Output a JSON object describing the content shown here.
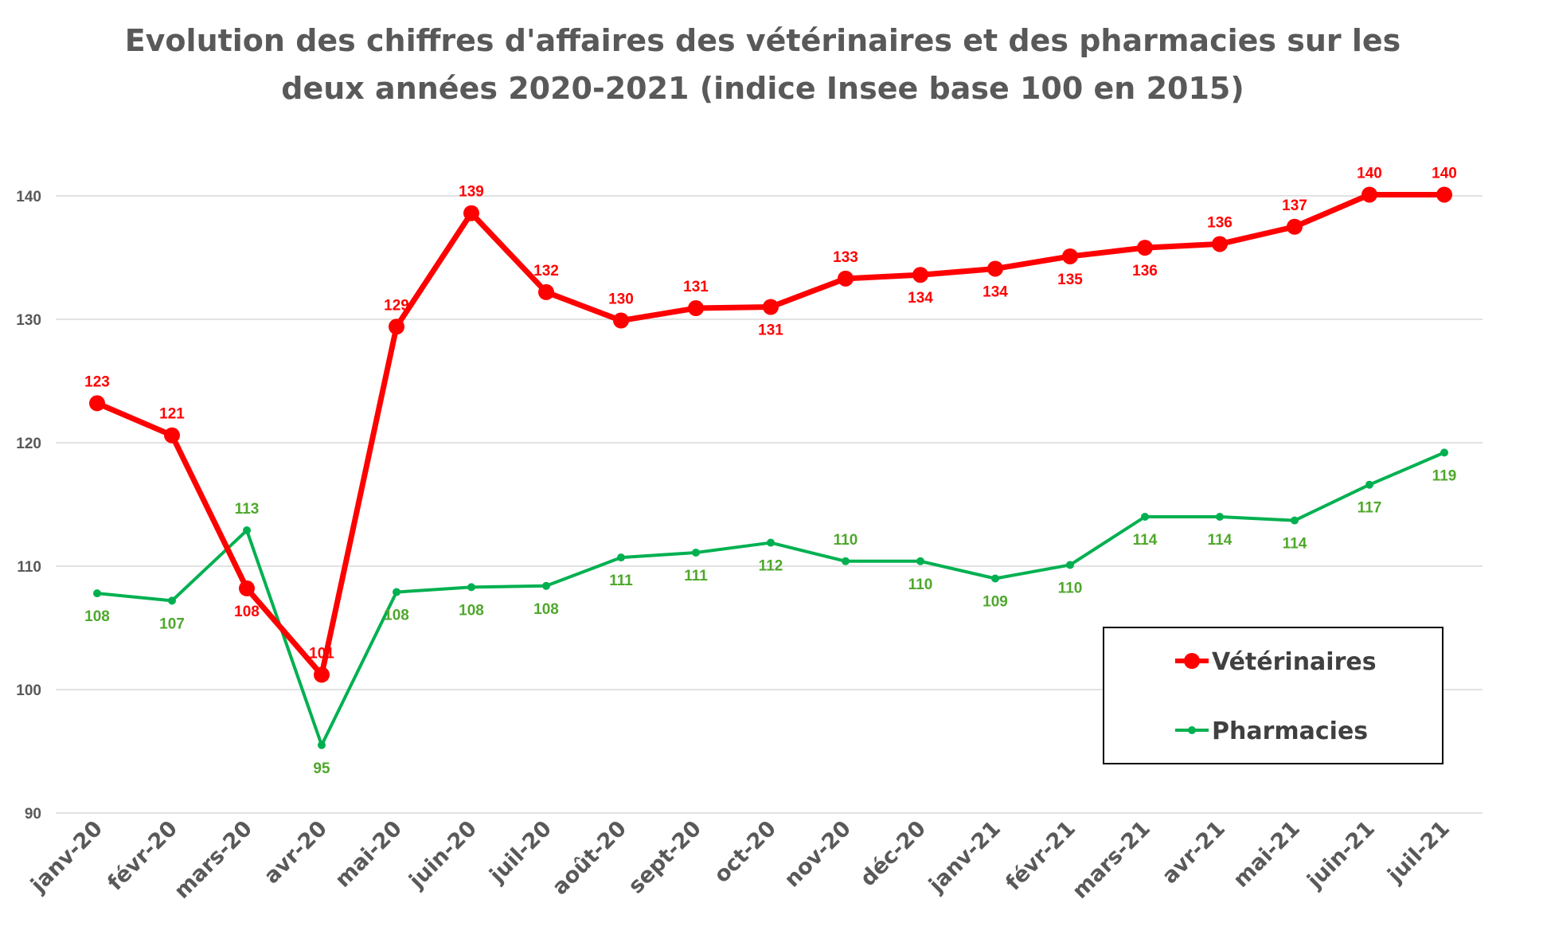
{
  "chart_data": {
    "type": "line",
    "title_lines": [
      "Evolution des chiffres d'affaires des vétérinaires et des pharmacies sur les",
      "deux années 2020-2021 (indice Insee base 100 en 2015)"
    ],
    "categories": [
      "janv-20",
      "févr-20",
      "mars-20",
      "avr-20",
      "mai-20",
      "juin-20",
      "juil-20",
      "août-20",
      "sept-20",
      "oct-20",
      "nov-20",
      "déc-20",
      "janv-21",
      "févr-21",
      "mars-21",
      "avr-21",
      "mai-21",
      "juin-21",
      "juil-21"
    ],
    "ylim": [
      90,
      145
    ],
    "yticks": [
      90,
      100,
      110,
      120,
      130,
      140
    ],
    "grid": true,
    "legend_position": "bottom-right",
    "series": [
      {
        "name": "Vétérinaires",
        "color": "#ff0000",
        "values": [
          123.2,
          120.6,
          108.2,
          101.2,
          129.4,
          138.6,
          132.2,
          129.9,
          130.9,
          131.0,
          133.3,
          133.6,
          134.1,
          135.1,
          135.8,
          136.1,
          137.5,
          140.1,
          140.1
        ],
        "data_labels": [
          "123",
          "121",
          "108",
          "101",
          "129",
          "139",
          "132",
          "130",
          "131",
          "131",
          "133",
          "134",
          "134",
          "135",
          "136",
          "136",
          "137",
          "140",
          "140"
        ],
        "label_position": [
          "above",
          "above",
          "below",
          "above",
          "above",
          "above",
          "above",
          "above",
          "above",
          "below",
          "above",
          "below",
          "below",
          "below",
          "below",
          "above",
          "above",
          "above",
          "above"
        ]
      },
      {
        "name": "Pharmacies",
        "color": "#00b050",
        "label_color": "#4fa82c",
        "values": [
          107.8,
          107.2,
          112.9,
          95.5,
          107.9,
          108.3,
          108.4,
          110.7,
          111.1,
          111.9,
          110.4,
          110.4,
          109.0,
          110.1,
          114.0,
          114.0,
          113.7,
          116.6,
          119.2
        ],
        "data_labels": [
          "108",
          "107",
          "113",
          "95",
          "108",
          "108",
          "108",
          "111",
          "111",
          "112",
          "110",
          "110",
          "109",
          "110",
          "114",
          "114",
          "114",
          "117",
          "119"
        ],
        "label_position": [
          "below",
          "below",
          "above",
          "below",
          "below",
          "below",
          "below",
          "below",
          "below",
          "below",
          "above",
          "below",
          "below",
          "below",
          "below",
          "below",
          "below",
          "below",
          "below"
        ]
      }
    ]
  }
}
